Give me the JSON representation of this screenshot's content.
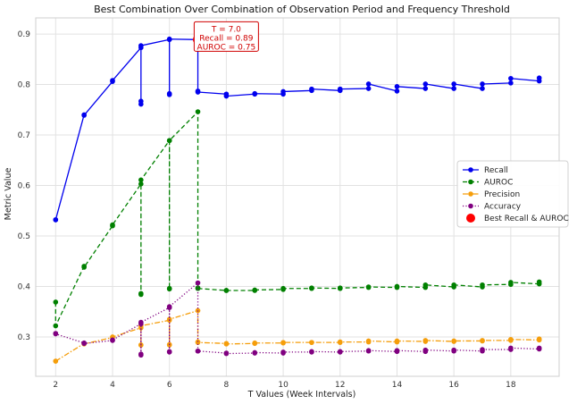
{
  "chart_data": {
    "type": "line",
    "title": "Best Combination Over Combination of Observation Period and Frequency Threshold",
    "xlabel": "T Values (Week Intervals)",
    "ylabel": "Metric Value",
    "xlim": [
      1.3,
      19.7
    ],
    "ylim": [
      0.222,
      0.932
    ],
    "xticks": [
      2,
      4,
      6,
      8,
      10,
      12,
      14,
      16,
      18
    ],
    "yticks": [
      0.3,
      0.4,
      0.5,
      0.6,
      0.7,
      0.8,
      0.9
    ],
    "grid": true,
    "legend_position": "center-right",
    "x": [
      2,
      2,
      3,
      3,
      4,
      4,
      5,
      5,
      5,
      5,
      6,
      6,
      6,
      6,
      7,
      7,
      7,
      8,
      8,
      9,
      9,
      10,
      10,
      11,
      11,
      12,
      12,
      13,
      13,
      14,
      14,
      15,
      15,
      16,
      16,
      17,
      17,
      18,
      18,
      19,
      19
    ],
    "series": [
      {
        "name": "Recall",
        "color": "#0000ee",
        "style": "solid",
        "marker": "circle",
        "values": [
          0.532,
          0.532,
          0.74,
          0.739,
          0.806,
          0.808,
          0.873,
          0.767,
          0.761,
          0.877,
          0.889,
          0.782,
          0.78,
          0.89,
          0.889,
          0.787,
          0.785,
          0.781,
          0.777,
          0.781,
          0.782,
          0.781,
          0.786,
          0.788,
          0.791,
          0.788,
          0.791,
          0.792,
          0.801,
          0.787,
          0.796,
          0.792,
          0.801,
          0.792,
          0.801,
          0.792,
          0.801,
          0.803,
          0.812,
          0.807,
          0.813
        ]
      },
      {
        "name": "AUROC",
        "color": "#008000",
        "style": "dashed",
        "marker": "circle",
        "values": [
          0.369,
          0.322,
          0.44,
          0.438,
          0.52,
          0.522,
          0.603,
          0.384,
          0.386,
          0.611,
          0.689,
          0.396,
          0.395,
          0.689,
          0.746,
          0.397,
          0.396,
          0.392,
          0.392,
          0.392,
          0.393,
          0.394,
          0.396,
          0.396,
          0.397,
          0.396,
          0.397,
          0.398,
          0.399,
          0.398,
          0.4,
          0.398,
          0.403,
          0.399,
          0.403,
          0.399,
          0.403,
          0.404,
          0.408,
          0.405,
          0.409
        ]
      },
      {
        "name": "Precision",
        "color": "#f59e0b",
        "style": "dashdot",
        "marker": "circle",
        "values": [
          0.252,
          0.252,
          0.287,
          0.286,
          0.299,
          0.3,
          0.318,
          0.284,
          0.284,
          0.322,
          0.333,
          0.284,
          0.285,
          0.335,
          0.352,
          0.29,
          0.289,
          0.287,
          0.286,
          0.287,
          0.288,
          0.288,
          0.289,
          0.289,
          0.289,
          0.289,
          0.29,
          0.29,
          0.292,
          0.29,
          0.292,
          0.291,
          0.293,
          0.291,
          0.292,
          0.292,
          0.293,
          0.293,
          0.295,
          0.294,
          0.296
        ]
      },
      {
        "name": "Accuracy",
        "color": "#800080",
        "style": "dotted",
        "marker": "circle",
        "values": [
          0.307,
          0.306,
          0.288,
          0.287,
          0.293,
          0.294,
          0.326,
          0.264,
          0.266,
          0.329,
          0.358,
          0.27,
          0.271,
          0.36,
          0.407,
          0.272,
          0.272,
          0.268,
          0.267,
          0.268,
          0.269,
          0.268,
          0.27,
          0.27,
          0.271,
          0.27,
          0.271,
          0.272,
          0.273,
          0.271,
          0.273,
          0.271,
          0.274,
          0.272,
          0.274,
          0.272,
          0.275,
          0.275,
          0.278,
          0.276,
          0.278
        ]
      }
    ],
    "highlight": {
      "name": "Best Recall & AUROC",
      "x": 7,
      "y": 0.889,
      "color": "#ff0000"
    },
    "annotation": {
      "lines": [
        "T = 7.0",
        "Recall = 0.89",
        "AUROC = 0.75"
      ],
      "anchor_x": 8,
      "anchor_y": 0.873,
      "color": "#d00000"
    }
  }
}
